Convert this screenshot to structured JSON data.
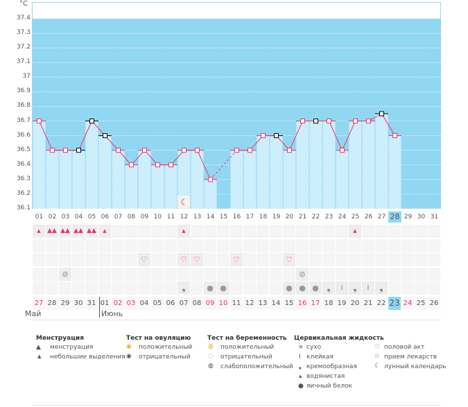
{
  "unit": "°C",
  "y_ticks": [
    "37.4",
    "37.3",
    "37.2",
    "37.1",
    "37",
    "36.9",
    "36.8",
    "36.7",
    "36.6",
    "36.5",
    "36.4",
    "36.3",
    "36.2",
    "36.1"
  ],
  "chart_days": [
    "01",
    "02",
    "03",
    "04",
    "05",
    "06",
    "07",
    "08",
    "09",
    "10",
    "11",
    "12",
    "13",
    "14",
    "15",
    "16",
    "17",
    "18",
    "19",
    "20",
    "21",
    "22",
    "23",
    "24",
    "25",
    "26",
    "27",
    "28",
    "29",
    "30",
    "31"
  ],
  "current_day_index": 27,
  "temperatures": [
    36.7,
    36.5,
    36.5,
    36.5,
    36.7,
    36.6,
    36.5,
    36.4,
    36.5,
    36.4,
    36.4,
    36.5,
    36.5,
    36.3,
    null,
    36.5,
    36.5,
    36.6,
    36.6,
    36.5,
    36.7,
    36.7,
    36.7,
    36.5,
    36.7,
    36.7,
    36.75,
    36.6,
    null,
    null,
    null
  ],
  "black_markers": [
    3,
    4,
    5,
    18,
    21,
    26
  ],
  "moon_day_index": 11,
  "dates": [
    "27",
    "28",
    "29",
    "30",
    "31",
    "01",
    "02",
    "03",
    "04",
    "05",
    "06",
    "07",
    "08",
    "09",
    "10",
    "11",
    "12",
    "13",
    "14",
    "15",
    "16",
    "17",
    "18",
    "19",
    "20",
    "21",
    "22",
    "23",
    "24",
    "25",
    "26"
  ],
  "red_dates": [
    0,
    6,
    7,
    13,
    14,
    20,
    21,
    28
  ],
  "today_date_index": 27,
  "months": {
    "may": "Май",
    "june": "Июнь"
  },
  "rows": {
    "menstruation": {
      "0": "light",
      "1": "heavy",
      "2": "heavy",
      "3": "heavy",
      "4": "heavy",
      "5": "light",
      "11": "light",
      "24": "light"
    },
    "ovulation": {},
    "intercourse": {
      "8": "heart",
      "11": "heart",
      "12": "heart",
      "15": "heart",
      "19": "heart"
    },
    "medication": {
      "2": "pill",
      "20": "pill"
    },
    "cervical": {
      "11": "creamy",
      "13": "egg",
      "14": "egg",
      "19": "egg",
      "20": "egg",
      "21": "egg",
      "22": "creamy",
      "23": "sticky",
      "24": "creamy",
      "25": "sticky",
      "26": "creamy"
    }
  },
  "legend": {
    "menstruation": {
      "title": "Менструация",
      "items": [
        "менструация",
        "небольшие выделения"
      ]
    },
    "ovulation": {
      "title": "Тест на овуляцию",
      "items": [
        "положительный",
        "отрицательный"
      ]
    },
    "pregnancy": {
      "title": "Тест на беременность",
      "items": [
        "положительный",
        "отрицательный",
        "слабоположительный"
      ]
    },
    "cervical": {
      "title": "Цервикальная жидкость",
      "items": [
        "сухо",
        "клейкая",
        "кремообразная",
        "водянистая",
        "яичный белок"
      ]
    },
    "other": {
      "items": [
        "половой акт",
        "прием лекарств",
        "лунный календарь"
      ]
    }
  },
  "colors": {
    "band": "#92d7f2",
    "bar": "#cdeefb",
    "line": "#f0306a",
    "red": "#f0306a"
  }
}
